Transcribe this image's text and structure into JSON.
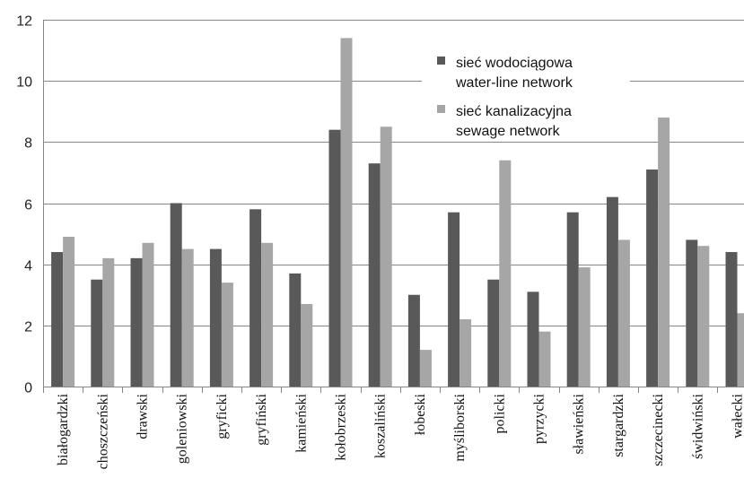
{
  "chart_data": {
    "type": "bar",
    "categories": [
      "białogardzki",
      "choszczeński",
      "drawski",
      "goleniowski",
      "gryficki",
      "gryfiński",
      "kamieński",
      "kołobrzeski",
      "koszaliński",
      "łobeski",
      "myśliborski",
      "policki",
      "pyrzycki",
      "sławieński",
      "stargardzki",
      "szczecinecki",
      "świdwiński",
      "wałecki"
    ],
    "series": [
      {
        "name": "sieć wodociągowa water-line network",
        "legend_lines": [
          "sieć wodociągowa",
          "water-line network"
        ],
        "color": "#595959",
        "values": [
          4.4,
          3.5,
          4.2,
          6.0,
          4.5,
          5.8,
          3.7,
          8.4,
          7.3,
          3.0,
          5.7,
          3.5,
          3.1,
          5.7,
          6.2,
          7.1,
          4.8,
          4.4
        ]
      },
      {
        "name": "sieć kanalizacyjna sewage network",
        "legend_lines": [
          "sieć kanalizacyjna",
          "sewage network"
        ],
        "color": "#a6a6a6",
        "values": [
          4.9,
          4.2,
          4.7,
          4.5,
          3.4,
          4.7,
          2.7,
          11.4,
          8.5,
          1.2,
          2.2,
          7.4,
          1.8,
          3.9,
          4.8,
          8.8,
          4.6,
          2.4
        ]
      }
    ],
    "yticks": [
      "0",
      "2",
      "4",
      "6",
      "8",
      "10",
      "12"
    ],
    "ylim": [
      0,
      12
    ],
    "grid": true,
    "legend": "top-right",
    "title": "",
    "xlabel": "",
    "ylabel": ""
  }
}
